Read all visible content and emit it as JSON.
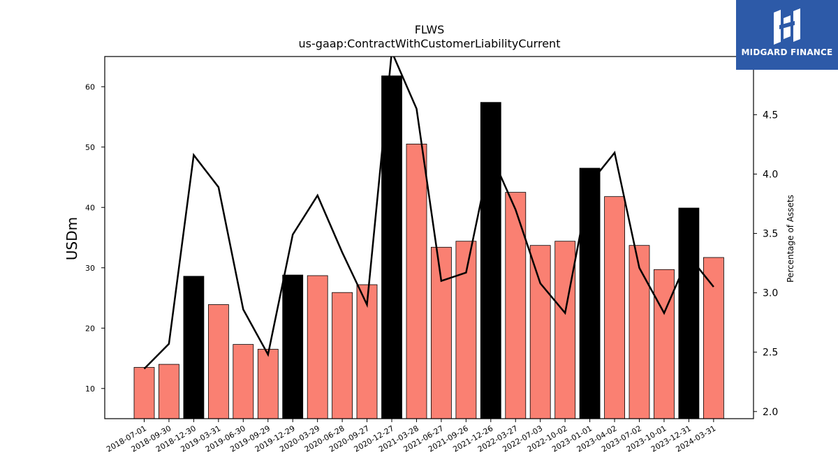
{
  "brand": {
    "name": "MIDGARD FINANCE"
  },
  "colors": {
    "accent_bar": "#fa8072",
    "highlight_bar": "#000000",
    "line": "#000000",
    "logo_bg": "#2d5aa8"
  },
  "chart_data": {
    "type": "bar",
    "title": "FLWS",
    "subtitle": "us-gaap:ContractWithCustomerLiabilityCurrent",
    "ylabel": "USDm",
    "y2label": "Percentage of Assets",
    "ylim": [
      5,
      65
    ],
    "y2lim": [
      1.94,
      4.99
    ],
    "yticks": [
      10,
      20,
      30,
      40,
      50,
      60
    ],
    "y2ticks": [
      2.0,
      2.5,
      3.0,
      3.5,
      4.0,
      4.5
    ],
    "categories": [
      "2018-07-01",
      "2018-09-30",
      "2018-12-30",
      "2019-03-31",
      "2019-06-30",
      "2019-09-29",
      "2019-12-29",
      "2020-03-29",
      "2020-06-28",
      "2020-09-27",
      "2020-12-27",
      "2021-03-28",
      "2021-06-27",
      "2021-09-26",
      "2021-12-26",
      "2022-03-27",
      "2022-07-03",
      "2022-10-02",
      "2023-01-01",
      "2023-04-02",
      "2023-07-02",
      "2023-10-01",
      "2023-12-31",
      "2024-03-31"
    ],
    "series": [
      {
        "type": "bar",
        "values": [
          13.5,
          14.0,
          28.6,
          23.9,
          17.3,
          16.5,
          28.8,
          28.7,
          25.9,
          27.2,
          61.8,
          50.5,
          33.4,
          34.4,
          57.4,
          42.5,
          33.7,
          34.4,
          46.5,
          41.8,
          33.7,
          29.7,
          39.9,
          31.7
        ],
        "highlight": [
          false,
          false,
          true,
          false,
          false,
          false,
          true,
          false,
          false,
          false,
          true,
          false,
          false,
          false,
          true,
          false,
          false,
          false,
          true,
          false,
          false,
          false,
          true,
          false
        ]
      },
      {
        "type": "line",
        "axis": "secondary",
        "values": [
          2.36,
          2.57,
          4.16,
          3.89,
          2.86,
          2.48,
          3.49,
          3.82,
          3.34,
          2.9,
          5.03,
          4.55,
          3.1,
          3.17,
          4.17,
          3.7,
          3.08,
          2.83,
          3.92,
          4.18,
          3.21,
          2.83,
          3.31,
          3.05
        ]
      }
    ]
  }
}
